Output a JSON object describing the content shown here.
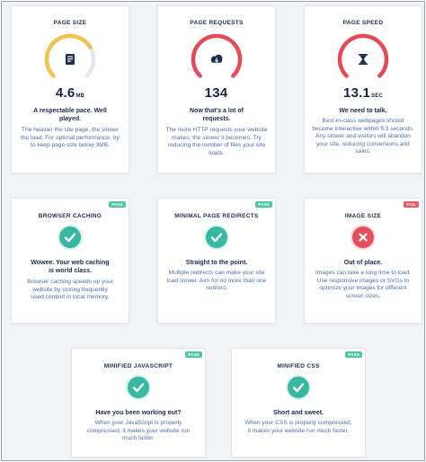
{
  "colors": {
    "gauge_ok": "#f2c14e",
    "gauge_bad": "#e44b57",
    "gauge_track": "#e3e6ea",
    "pass": "#38b8a0",
    "fail": "#e4505e"
  },
  "metrics": [
    {
      "title": "PAGE SIZE",
      "value": "4.6",
      "unit": "MB",
      "headline": "A respectable pace. Well played.",
      "description": "The heavier the site page, the slower the load. For optimal performance, try to keep page size below 3MB.",
      "icon": "document-icon",
      "gauge_level": 0.72,
      "gauge_color": "#f2c14e"
    },
    {
      "title": "PAGE REQUESTS",
      "value": "134",
      "unit": "",
      "headline": "Now that's a lot of requests.",
      "description": "The more HTTP requests your website makes, the slower it becomes. Try reducing the number of files your site loads.",
      "icon": "cloud-download-icon",
      "gauge_level": 1.0,
      "gauge_color": "#e44b57"
    },
    {
      "title": "PAGE SPEED",
      "value": "13.1",
      "unit": "SEC",
      "headline": "We need to talk.",
      "description": "Best-in-class webpages should become interactive within 5.3 seconds. Any slower and visitors will abandon your site, reducing conversions and sales.",
      "icon": "hourglass-icon",
      "gauge_level": 1.0,
      "gauge_color": "#e44b57"
    }
  ],
  "checks": [
    {
      "title": "BROWSER CACHING",
      "status": "PASS",
      "headline": "Wowee. Your web caching is world class.",
      "description": "Browser caching speeds up your website by storing frequently used content in local memory."
    },
    {
      "title": "MINIMAL PAGE REDIRECTS",
      "status": "PASS",
      "headline": "Straight to the point.",
      "description": "Multiple redirects can make your site load slower. Aim for no more than one redirect."
    },
    {
      "title": "IMAGE SIZE",
      "status": "FAIL",
      "headline": "Out of place.",
      "description": "Images can take a long time to load. Use responsive images or SVGs to optimize your images for different screen sizes."
    },
    {
      "title": "MINIFIED JAVASCRIPT",
      "status": "PASS",
      "headline": "Have you been working out?",
      "description": "When your JavaScript is properly compressed, it makes your website run much faster."
    },
    {
      "title": "MINIFIED CSS",
      "status": "PASS",
      "headline": "Short and sweet.",
      "description": "When your CSS is properly compressed, it makes your website run much faster."
    }
  ]
}
